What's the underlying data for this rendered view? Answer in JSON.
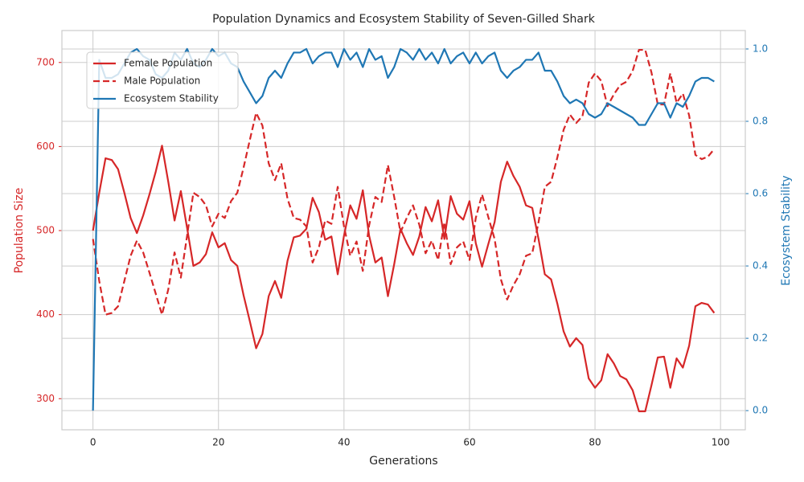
{
  "chart_data": {
    "type": "line",
    "title": "Population Dynamics and Ecosystem Stability of Seven-Gilled Shark",
    "xlabel": "Generations",
    "ylabel": "Population Size",
    "y2label": "Ecosystem Stability",
    "grid": true,
    "legend": "upper left",
    "xlim": [
      -4.95,
      103.95
    ],
    "ylim": [
      263,
      738
    ],
    "y2lim": [
      -0.053,
      1.051
    ],
    "xticks": [
      0,
      20,
      40,
      60,
      80,
      100
    ],
    "yticks": [
      300,
      400,
      500,
      600,
      700
    ],
    "y2ticks": [
      {
        "value": 0,
        "label": "0.0"
      },
      0.2,
      0.4,
      0.6,
      0.8,
      {
        "value": 1,
        "label": "1.0"
      }
    ],
    "x": [
      0,
      1,
      2,
      3,
      4,
      5,
      6,
      7,
      8,
      9,
      10,
      11,
      12,
      13,
      14,
      15,
      16,
      17,
      18,
      19,
      20,
      21,
      22,
      23,
      24,
      25,
      26,
      27,
      28,
      29,
      30,
      31,
      32,
      33,
      34,
      35,
      36,
      37,
      38,
      39,
      40,
      41,
      42,
      43,
      44,
      45,
      46,
      47,
      48,
      49,
      50,
      51,
      52,
      53,
      54,
      55,
      56,
      57,
      58,
      59,
      60,
      61,
      62,
      63,
      64,
      65,
      66,
      67,
      68,
      69,
      70,
      71,
      72,
      73,
      74,
      75,
      76,
      77,
      78,
      79,
      80,
      81,
      82,
      83,
      84,
      85,
      86,
      87,
      88,
      89,
      90,
      91,
      92,
      93,
      94,
      95,
      96,
      97,
      98,
      99
    ],
    "series": [
      {
        "name": "Female Population",
        "color": "#d62728",
        "linestyle": "solid",
        "axis": "y",
        "values": [
          500,
          545,
          586,
          584,
          573,
          545,
          515,
          497,
          518,
          543,
          570,
          601,
          558,
          512,
          547,
          503,
          458,
          462,
          472,
          498,
          480,
          485,
          465,
          458,
          423,
          392,
          360,
          377,
          422,
          440,
          420,
          464,
          492,
          494,
          502,
          539,
          522,
          489,
          493,
          448,
          494,
          530,
          514,
          548,
          494,
          462,
          468,
          422,
          460,
          502,
          485,
          471,
          493,
          528,
          511,
          536,
          490,
          541,
          520,
          513,
          535,
          485,
          457,
          484,
          510,
          558,
          582,
          565,
          552,
          530,
          527,
          490,
          448,
          442,
          413,
          380,
          362,
          372,
          364,
          324,
          313,
          322,
          353,
          342,
          327,
          323,
          310,
          285,
          285,
          316,
          349,
          350,
          313,
          348,
          337,
          363,
          410,
          414,
          412,
          402
        ]
      },
      {
        "name": "Male Population",
        "color": "#d62728",
        "linestyle": "dashed",
        "axis": "y",
        "values": [
          490,
          440,
          400,
          402,
          410,
          440,
          470,
          488,
          474,
          450,
          425,
          400,
          430,
          474,
          444,
          494,
          545,
          540,
          530,
          505,
          520,
          515,
          535,
          545,
          575,
          608,
          640,
          625,
          580,
          560,
          580,
          538,
          515,
          513,
          505,
          462,
          480,
          512,
          508,
          552,
          505,
          470,
          487,
          452,
          506,
          540,
          534,
          578,
          540,
          498,
          515,
          530,
          507,
          473,
          488,
          465,
          510,
          460,
          480,
          487,
          465,
          515,
          543,
          516,
          490,
          442,
          418,
          435,
          448,
          470,
          473,
          510,
          552,
          558,
          587,
          620,
          638,
          628,
          636,
          676,
          687,
          678,
          648,
          662,
          673,
          677,
          690,
          715,
          715,
          688,
          650,
          650,
          687,
          652,
          663,
          637,
          590,
          585,
          588,
          597
        ]
      },
      {
        "name": "Ecosystem Stability",
        "color": "#1f77b4",
        "linestyle": "solid",
        "axis": "y2",
        "values": [
          0.0,
          0.97,
          0.92,
          0.92,
          0.93,
          0.96,
          0.99,
          1.0,
          0.98,
          0.97,
          0.93,
          0.92,
          0.94,
          0.99,
          0.97,
          1.0,
          0.96,
          0.95,
          0.97,
          1.0,
          0.98,
          0.99,
          0.96,
          0.95,
          0.91,
          0.88,
          0.85,
          0.87,
          0.92,
          0.94,
          0.92,
          0.96,
          0.99,
          0.99,
          1.0,
          0.96,
          0.98,
          0.99,
          0.99,
          0.95,
          1.0,
          0.97,
          0.99,
          0.95,
          1.0,
          0.97,
          0.98,
          0.92,
          0.95,
          1.0,
          0.99,
          0.97,
          1.0,
          0.97,
          0.99,
          0.96,
          1.0,
          0.96,
          0.98,
          0.99,
          0.96,
          0.99,
          0.96,
          0.98,
          0.99,
          0.94,
          0.92,
          0.94,
          0.95,
          0.97,
          0.97,
          0.99,
          0.94,
          0.94,
          0.91,
          0.87,
          0.85,
          0.86,
          0.85,
          0.82,
          0.81,
          0.82,
          0.85,
          0.84,
          0.83,
          0.82,
          0.81,
          0.79,
          0.79,
          0.82,
          0.85,
          0.85,
          0.81,
          0.85,
          0.84,
          0.87,
          0.91,
          0.92,
          0.92,
          0.91
        ]
      }
    ]
  }
}
